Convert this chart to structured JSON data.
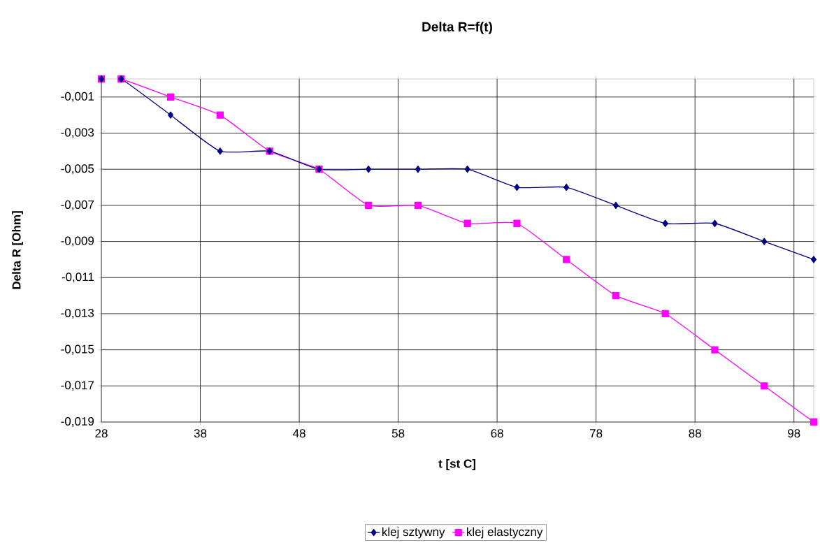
{
  "chart_data": {
    "type": "line",
    "title": "Delta R=f(t)",
    "xlabel": "t [st C]",
    "ylabel": "Delta R [Ohm]",
    "x": [
      28,
      30,
      35,
      40,
      45,
      50,
      55,
      60,
      65,
      70,
      75,
      80,
      85,
      90,
      95,
      100
    ],
    "series": [
      {
        "name": "klej sztywny",
        "color": "#000080",
        "marker": "diamond",
        "values": [
          0,
          0,
          -0.002,
          -0.004,
          -0.004,
          -0.005,
          -0.005,
          -0.005,
          -0.005,
          -0.006,
          -0.006,
          -0.007,
          -0.008,
          -0.008,
          -0.009,
          -0.01
        ]
      },
      {
        "name": "klej elastyczny",
        "color": "#ff00ff",
        "marker": "square",
        "values": [
          0,
          0,
          -0.001,
          -0.002,
          -0.004,
          -0.005,
          -0.007,
          -0.007,
          -0.008,
          -0.008,
          -0.01,
          -0.012,
          -0.013,
          -0.015,
          -0.017,
          -0.019
        ]
      }
    ],
    "xlim": [
      28,
      100
    ],
    "xticks": [
      28,
      38,
      48,
      58,
      68,
      78,
      88,
      98
    ],
    "ylim": [
      -0.019,
      0
    ],
    "yticks": [
      {
        "value": -0.001,
        "label": "-0,001"
      },
      {
        "value": -0.003,
        "label": "-0,003"
      },
      {
        "value": -0.005,
        "label": "-0,005"
      },
      {
        "value": -0.007,
        "label": "-0,007"
      },
      {
        "value": -0.009,
        "label": "-0,009"
      },
      {
        "value": -0.011,
        "label": "-0,011"
      },
      {
        "value": -0.013,
        "label": "-0,013"
      },
      {
        "value": -0.015,
        "label": "-0,015"
      },
      {
        "value": -0.017,
        "label": "-0,017"
      },
      {
        "value": -0.019,
        "label": "-0,019"
      }
    ],
    "grid": true,
    "legend": "bottom",
    "line_style": "solid"
  }
}
